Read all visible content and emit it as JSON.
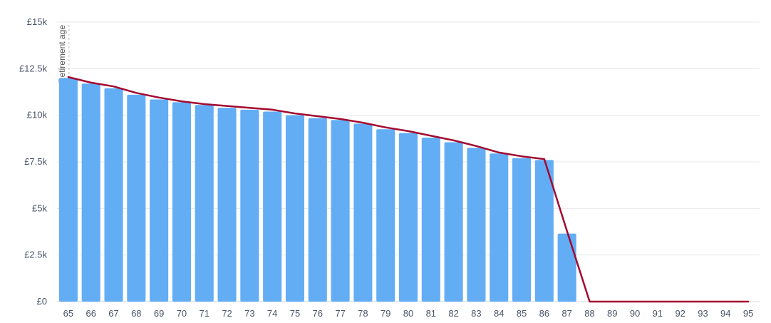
{
  "chart_data": {
    "type": "bar",
    "title": "",
    "xlabel": "",
    "ylabel": "",
    "categories": [
      "65",
      "66",
      "67",
      "68",
      "69",
      "70",
      "71",
      "72",
      "73",
      "74",
      "75",
      "76",
      "77",
      "78",
      "79",
      "80",
      "81",
      "82",
      "83",
      "84",
      "85",
      "86",
      "87",
      "88",
      "89",
      "90",
      "91",
      "92",
      "93",
      "94",
      "95"
    ],
    "series": [
      {
        "type": "bar",
        "color": "#63adf5",
        "values": [
          12000,
          11700,
          11450,
          11100,
          10850,
          10700,
          10550,
          10400,
          10300,
          10200,
          10000,
          9850,
          9750,
          9550,
          9250,
          9050,
          8800,
          8550,
          8250,
          7950,
          7700,
          7600,
          3650,
          0,
          0,
          0,
          0,
          0,
          0,
          0,
          0
        ]
      },
      {
        "type": "line",
        "color": "#a3082f",
        "values": [
          12050,
          11750,
          11550,
          11200,
          10950,
          10750,
          10600,
          10500,
          10400,
          10300,
          10100,
          9950,
          9800,
          9600,
          9350,
          9150,
          8900,
          8650,
          8350,
          8000,
          7800,
          7650,
          3800,
          0,
          0,
          0,
          0,
          0,
          0,
          0,
          0
        ]
      }
    ],
    "ylim": [
      0,
      15000
    ],
    "yticks": [
      {
        "value": 0,
        "label": "£0"
      },
      {
        "value": 2500,
        "label": "£2.5k"
      },
      {
        "value": 5000,
        "label": "£5k"
      },
      {
        "value": 7500,
        "label": "£7.5k"
      },
      {
        "value": 10000,
        "label": "£10k"
      },
      {
        "value": 12500,
        "label": "£12.5k"
      },
      {
        "value": 15000,
        "label": "£15k"
      }
    ],
    "grid": true,
    "legend": "none",
    "annotations": [
      {
        "type": "vertical-dashed-line",
        "at_category": "65",
        "label": "Retirement age"
      }
    ]
  }
}
